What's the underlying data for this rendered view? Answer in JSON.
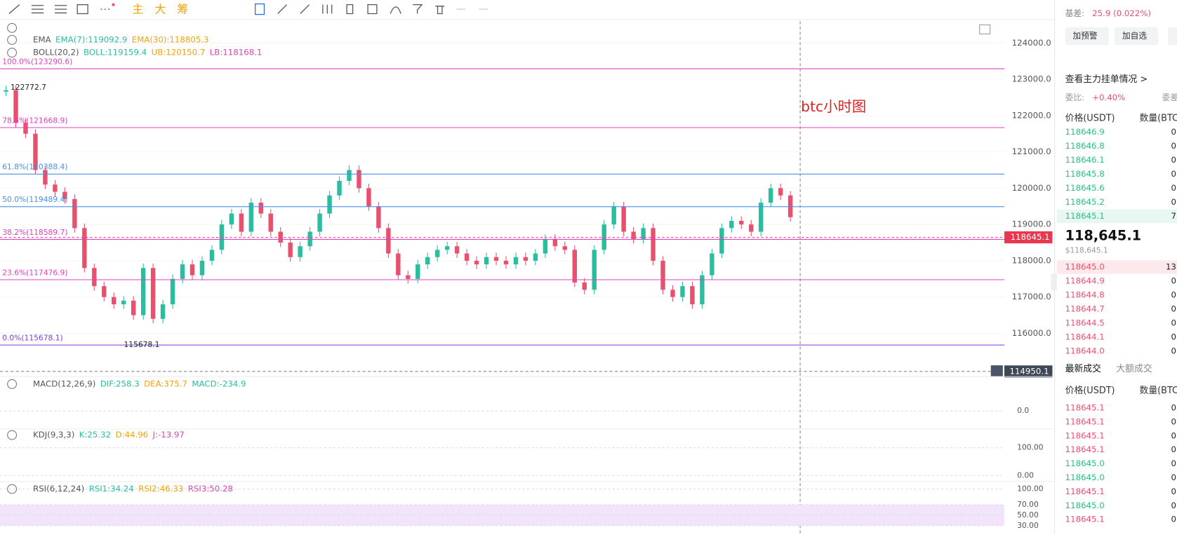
{
  "toolbar": {
    "tabs": [
      "主",
      "大",
      "筹"
    ]
  },
  "indicators": {
    "ema": {
      "name": "EMA",
      "items": [
        {
          "text": "EMA(7):119092.9",
          "color": "#2bbd9f"
        },
        {
          "text": "EMA(30):118805.3",
          "color": "#f0a30a"
        }
      ]
    },
    "boll": {
      "name": "BOLL(20,2)",
      "items": [
        {
          "text": "BOLL:119159.4",
          "color": "#2bbd9f"
        },
        {
          "text": "UB:120150.7",
          "color": "#f0a30a"
        },
        {
          "text": "LB:118168.1",
          "color": "#d946b5"
        }
      ]
    },
    "macd": {
      "name": "MACD(12,26,9)",
      "items": [
        {
          "text": "DIF:258.3",
          "color": "#2bbd9f"
        },
        {
          "text": "DEA:375.7",
          "color": "#f0a30a"
        },
        {
          "text": "MACD:-234.9",
          "color": "#2bbd9f"
        }
      ]
    },
    "kdj": {
      "name": "KDJ(9,3,3)",
      "items": [
        {
          "text": "K:25.32",
          "color": "#2bbd9f"
        },
        {
          "text": "D:44.96",
          "color": "#f0a30a"
        },
        {
          "text": "J:-13.97",
          "color": "#d946b5"
        }
      ]
    },
    "rsi": {
      "name": "RSI(6,12,24)",
      "items": [
        {
          "text": "RSI1:34.24",
          "color": "#2bbd9f"
        },
        {
          "text": "RSI2:46.33",
          "color": "#f0a30a"
        },
        {
          "text": "RSI3:50.28",
          "color": "#d946b5"
        }
      ]
    }
  },
  "annotation": "btc小时图",
  "chart_data": {
    "type": "candlestick",
    "closes": [
      122700,
      121800,
      121500,
      120500,
      120100,
      119900,
      119700,
      118900,
      117800,
      117300,
      117000,
      116800,
      116900,
      116500,
      117800,
      116400,
      116800,
      117500,
      117900,
      117600,
      118000,
      118300,
      119000,
      119300,
      118800,
      119600,
      119300,
      118800,
      118500,
      118100,
      118400,
      118800,
      119300,
      119800,
      120200,
      120500,
      120000,
      119500,
      118900,
      118200,
      117600,
      117500,
      117900,
      118100,
      118300,
      118400,
      118200,
      118000,
      117900,
      118100,
      118000,
      117900,
      118100,
      118000,
      118200,
      118600,
      118400,
      118300,
      117400,
      117200,
      118300,
      119000,
      119500,
      118800,
      118600,
      118900,
      118000,
      117200,
      117000,
      117300,
      116800,
      117600,
      118200,
      118900,
      119100,
      119000,
      118800,
      119600,
      120000,
      119800,
      119200
    ],
    "up_color": "#2bbd9f",
    "down_color": "#e8506e",
    "ylim": [
      114850,
      124560
    ],
    "yticks": [
      {
        "value": 116000,
        "label": "116000.0"
      },
      {
        "value": 117000,
        "label": "117000.0"
      },
      {
        "value": 118000,
        "label": "118000.0"
      },
      {
        "value": 119000,
        "label": "119000.0"
      },
      {
        "value": 120000,
        "label": "120000.0"
      },
      {
        "value": 121000,
        "label": "121000.0"
      },
      {
        "value": 122000,
        "label": "122000.0"
      },
      {
        "value": 123000,
        "label": "123000.0"
      },
      {
        "value": 124000,
        "label": "124000.0"
      }
    ],
    "fib": [
      {
        "value": 123290.6,
        "label": "100.0%(123290.6)",
        "color": "#e040c0"
      },
      {
        "value": 121668.9,
        "label": "78.6%(121668.9)",
        "color": "#e040c0"
      },
      {
        "value": 120388.4,
        "label": "61.8%(120388.4)",
        "color": "#4a8fe0"
      },
      {
        "value": 119489.4,
        "label": "50.0%(119489.4)",
        "color": "#4a8fe0"
      },
      {
        "value": 118589.7,
        "label": "38.2%(118589.7)",
        "color": "#e040c0"
      },
      {
        "value": 117476.9,
        "label": "23.6%(117476.9)",
        "color": "#e040c0"
      },
      {
        "value": 115678.1,
        "label": "0.0%(115678.1)",
        "color": "#7a3fd0"
      }
    ],
    "high": {
      "value": 122772.7,
      "label": "122772.7"
    },
    "low": {
      "value": 115678.1,
      "label": "115678.1"
    },
    "last_price": {
      "value": 118645.1,
      "label": "118645.1"
    },
    "crosshair": {
      "value": 114950.1,
      "label": "114950.1"
    },
    "panes": [
      {
        "ylim": [
          -400,
          1000
        ],
        "yticks": [
          {
            "value": 0,
            "label": "0.0"
          }
        ]
      },
      {
        "ylim": [
          -16,
          159
        ],
        "yticks": [
          {
            "value": 100,
            "label": "100.00"
          },
          {
            "value": 0,
            "label": "0.00"
          }
        ]
      },
      {
        "ylim": [
          14,
          110
        ],
        "yticks": [
          {
            "value": 100,
            "label": "100.00"
          },
          {
            "value": 70,
            "label": "70.00"
          },
          {
            "value": 50,
            "label": "50.00"
          },
          {
            "value": 30,
            "label": "30.00"
          }
        ]
      }
    ]
  },
  "panel": {
    "basis_label": "基差:",
    "basis": "25.9 (0.022%)",
    "buttons": [
      "加预警",
      "加自选"
    ],
    "depth_link": "查看主力挂单情况 >",
    "ratio_label": "委比:",
    "ratio": "+0.40%",
    "ratio_right": "委差",
    "book_headers": [
      "价格(USDT)",
      "数量(BTC"
    ],
    "upper": [
      {
        "p": "118646.9",
        "q": "0"
      },
      {
        "p": "118646.8",
        "q": "0"
      },
      {
        "p": "118646.1",
        "q": "0"
      },
      {
        "p": "118645.8",
        "q": "0"
      },
      {
        "p": "118645.6",
        "q": "0"
      },
      {
        "p": "118645.2",
        "q": "0"
      },
      {
        "p": "118645.1",
        "q": "7"
      }
    ],
    "price": "118,645.1",
    "price_usd": "$118,645.1",
    "lower": [
      {
        "p": "118645.0",
        "q": "13"
      },
      {
        "p": "118644.9",
        "q": "0"
      },
      {
        "p": "118644.8",
        "q": "0"
      },
      {
        "p": "118644.7",
        "q": "0"
      },
      {
        "p": "118644.5",
        "q": "0"
      },
      {
        "p": "118644.1",
        "q": "0"
      },
      {
        "p": "118644.0",
        "q": "0"
      }
    ],
    "trade_tabs": [
      "最新成交",
      "大额成交"
    ],
    "trade_headers": [
      "价格(USDT)",
      "数量(BTC"
    ],
    "trades": [
      {
        "p": "118645.1",
        "q": "0",
        "color": "#e8506e"
      },
      {
        "p": "118645.1",
        "q": "0",
        "color": "#e8506e"
      },
      {
        "p": "118645.1",
        "q": "0",
        "color": "#e8506e"
      },
      {
        "p": "118645.1",
        "q": "0",
        "color": "#e8506e"
      },
      {
        "p": "118645.0",
        "q": "0",
        "color": "#2bbd85"
      },
      {
        "p": "118645.0",
        "q": "0",
        "color": "#2bbd85"
      },
      {
        "p": "118645.1",
        "q": "0",
        "color": "#e8506e"
      },
      {
        "p": "118645.0",
        "q": "0",
        "color": "#2bbd85"
      },
      {
        "p": "118645.1",
        "q": "0",
        "color": "#e8506e"
      }
    ]
  }
}
